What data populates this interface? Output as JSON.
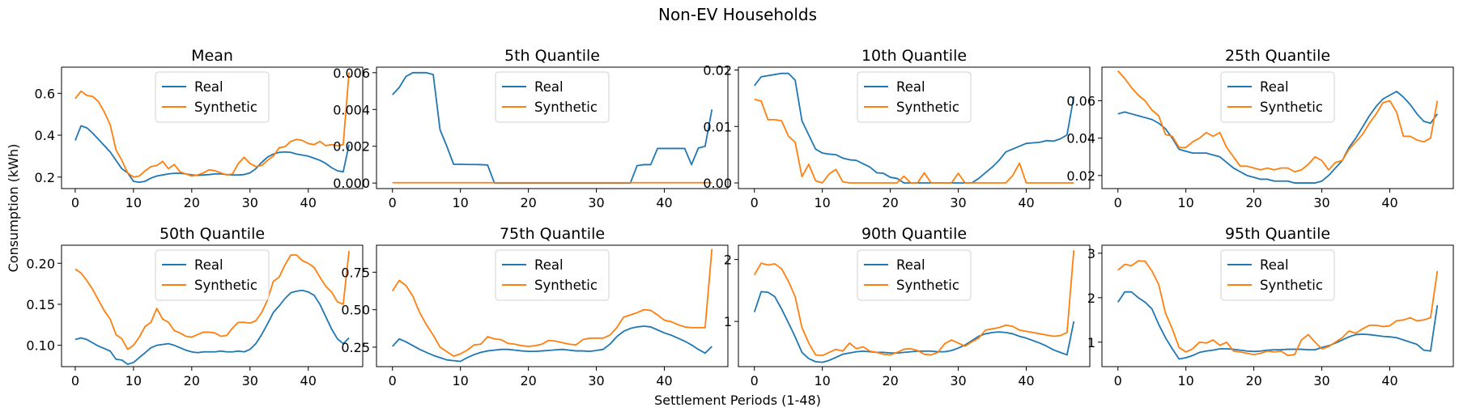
{
  "figure": {
    "title": "Non-EV Households",
    "xlabel": "Settlement Periods (1-48)",
    "ylabel": "Consumption (kWh)",
    "colors": {
      "real": "#1f77b4",
      "synthetic": "#ff7f0e"
    }
  },
  "chart_data": [
    {
      "type": "line",
      "title": "Mean",
      "x_ticks": [
        0,
        10,
        20,
        30,
        40
      ],
      "xlim": [
        -2.35,
        49.35
      ],
      "y_ticks": [
        0.2,
        0.4,
        0.6
      ],
      "y_tick_labels": [
        "0.2",
        "0.4",
        "0.6"
      ],
      "ylim": [
        0.145,
        0.725
      ],
      "legend": "upper center",
      "series": [
        {
          "name": "Real",
          "color": "#1f77b4",
          "values": [
            0.375,
            0.445,
            0.435,
            0.41,
            0.38,
            0.35,
            0.32,
            0.28,
            0.24,
            0.22,
            0.18,
            0.175,
            0.18,
            0.195,
            0.205,
            0.21,
            0.215,
            0.218,
            0.218,
            0.215,
            0.21,
            0.208,
            0.21,
            0.212,
            0.215,
            0.215,
            0.212,
            0.21,
            0.21,
            0.212,
            0.22,
            0.24,
            0.27,
            0.295,
            0.31,
            0.318,
            0.32,
            0.318,
            0.31,
            0.305,
            0.3,
            0.29,
            0.28,
            0.265,
            0.245,
            0.23,
            0.225,
            0.355
          ]
        },
        {
          "name": "Synthetic",
          "color": "#ff7f0e",
          "values": [
            0.575,
            0.61,
            0.59,
            0.585,
            0.56,
            0.51,
            0.45,
            0.33,
            0.28,
            0.22,
            0.2,
            0.205,
            0.23,
            0.25,
            0.255,
            0.275,
            0.24,
            0.26,
            0.225,
            0.215,
            0.205,
            0.21,
            0.22,
            0.235,
            0.23,
            0.22,
            0.21,
            0.215,
            0.265,
            0.295,
            0.265,
            0.25,
            0.255,
            0.28,
            0.3,
            0.34,
            0.345,
            0.37,
            0.38,
            0.375,
            0.36,
            0.355,
            0.37,
            0.35,
            0.355,
            0.35,
            0.355,
            0.7
          ]
        }
      ]
    },
    {
      "type": "line",
      "title": "5th Quantile",
      "x_ticks": [
        0,
        10,
        20,
        30,
        40
      ],
      "xlim": [
        -2.35,
        49.35
      ],
      "y_ticks": [
        0.0,
        0.002,
        0.004,
        0.006
      ],
      "y_tick_labels": [
        "0.000",
        "0.002",
        "0.004",
        "0.006"
      ],
      "ylim": [
        -0.0003,
        0.0063
      ],
      "legend": "upper center",
      "series": [
        {
          "name": "Real",
          "color": "#1f77b4",
          "values": [
            0.0048,
            0.0052,
            0.0058,
            0.006,
            0.006,
            0.006,
            0.0059,
            0.0029,
            0.002,
            0.00102,
            0.00102,
            0.00101,
            0.00101,
            0.001,
            0.00098,
            0.0,
            0,
            0,
            0,
            0,
            0,
            0,
            0,
            0,
            0,
            0,
            0,
            0,
            0,
            0,
            0,
            0,
            0,
            0,
            0,
            0,
            0.00095,
            0.001,
            0.001,
            0.00188,
            0.00188,
            0.00188,
            0.00188,
            0.00188,
            0.001,
            0.0019,
            0.002,
            0.004
          ]
        },
        {
          "name": "Synthetic",
          "color": "#ff7f0e",
          "values": [
            2e-05,
            2e-05,
            2e-05,
            2e-05,
            2e-05,
            2e-05,
            2e-05,
            2e-05,
            2e-05,
            2e-05,
            2e-05,
            2e-05,
            2e-05,
            2e-05,
            2e-05,
            2e-05,
            2e-05,
            2e-05,
            2e-05,
            2e-05,
            2e-05,
            2e-05,
            2e-05,
            2e-05,
            2e-05,
            2e-05,
            2e-05,
            2e-05,
            2e-05,
            2e-05,
            2e-05,
            2e-05,
            2e-05,
            2e-05,
            2e-05,
            2e-05,
            2e-05,
            2e-05,
            2e-05,
            2e-05,
            2e-05,
            2e-05,
            2e-05,
            2e-05,
            2e-05,
            2e-05,
            2e-05,
            2e-05
          ]
        }
      ]
    },
    {
      "type": "line",
      "title": "10th Quantile",
      "x_ticks": [
        0,
        10,
        20,
        30,
        40
      ],
      "xlim": [
        -2.35,
        49.35
      ],
      "y_ticks": [
        0.0,
        0.01,
        0.02
      ],
      "y_tick_labels": [
        "0.00",
        "0.01",
        "0.02"
      ],
      "ylim": [
        -0.001,
        0.0205
      ],
      "legend": "upper center",
      "series": [
        {
          "name": "Real",
          "color": "#1f77b4",
          "values": [
            0.0172,
            0.0188,
            0.019,
            0.0192,
            0.0194,
            0.0194,
            0.0182,
            0.011,
            0.0085,
            0.006,
            0.0053,
            0.0051,
            0.005,
            0.0044,
            0.0041,
            0.004,
            0.0034,
            0.0028,
            0.0018,
            0.0017,
            0.001,
            0.0008,
            0.0,
            0,
            0,
            0,
            0,
            0,
            0,
            0,
            0,
            0,
            0,
            0.0008,
            0.0018,
            0.0028,
            0.004,
            0.0055,
            0.006,
            0.0065,
            0.007,
            0.0071,
            0.0072,
            0.0075,
            0.0074,
            0.0078,
            0.0085,
            0.0153
          ]
        },
        {
          "name": "Synthetic",
          "color": "#ff7f0e",
          "values": [
            0.0148,
            0.0145,
            0.0112,
            0.0112,
            0.011,
            0.0083,
            0.0072,
            0.0011,
            0.0033,
            0.0004,
            0.0,
            0.0016,
            0.0024,
            0.0002,
            0.0,
            0,
            0,
            0,
            0,
            0,
            0,
            0.0,
            0.0012,
            0.0,
            0.0,
            0.0018,
            0.0,
            0.0,
            0.0,
            0.0,
            0.0017,
            0.0,
            0,
            0,
            0,
            0,
            0,
            0,
            0.0013,
            0.0035,
            0.0,
            0,
            0,
            0,
            0,
            0,
            0,
            0
          ]
        }
      ]
    },
    {
      "type": "line",
      "title": "25th Quantile",
      "x_ticks": [
        0,
        10,
        20,
        30,
        40
      ],
      "xlim": [
        -2.35,
        49.35
      ],
      "y_ticks": [
        0.02,
        0.04,
        0.06
      ],
      "y_tick_labels": [
        "0.02",
        "0.04",
        "0.06"
      ],
      "ylim": [
        0.013,
        0.078
      ],
      "legend": "upper center",
      "series": [
        {
          "name": "Real",
          "color": "#1f77b4",
          "values": [
            0.053,
            0.054,
            0.053,
            0.052,
            0.051,
            0.05,
            0.048,
            0.045,
            0.04,
            0.034,
            0.033,
            0.032,
            0.032,
            0.032,
            0.031,
            0.03,
            0.027,
            0.024,
            0.022,
            0.02,
            0.019,
            0.018,
            0.018,
            0.017,
            0.017,
            0.017,
            0.016,
            0.016,
            0.016,
            0.016,
            0.017,
            0.02,
            0.024,
            0.028,
            0.035,
            0.04,
            0.046,
            0.052,
            0.057,
            0.061,
            0.063,
            0.065,
            0.062,
            0.058,
            0.053,
            0.049,
            0.048,
            0.053
          ]
        },
        {
          "name": "Synthetic",
          "color": "#ff7f0e",
          "values": [
            0.076,
            0.072,
            0.067,
            0.063,
            0.06,
            0.055,
            0.052,
            0.042,
            0.041,
            0.035,
            0.035,
            0.038,
            0.04,
            0.043,
            0.041,
            0.043,
            0.035,
            0.03,
            0.025,
            0.025,
            0.024,
            0.023,
            0.024,
            0.023,
            0.024,
            0.024,
            0.022,
            0.023,
            0.026,
            0.03,
            0.028,
            0.023,
            0.027,
            0.028,
            0.034,
            0.038,
            0.042,
            0.048,
            0.053,
            0.059,
            0.06,
            0.054,
            0.041,
            0.041,
            0.039,
            0.038,
            0.04,
            0.06
          ]
        }
      ]
    },
    {
      "type": "line",
      "title": "50th Quantile",
      "x_ticks": [
        0,
        10,
        20,
        30,
        40
      ],
      "xlim": [
        -2.35,
        49.35
      ],
      "y_ticks": [
        0.1,
        0.15,
        0.2
      ],
      "y_tick_labels": [
        "0.10",
        "0.15",
        "0.20"
      ],
      "ylim": [
        0.074,
        0.222
      ],
      "legend": "upper center",
      "series": [
        {
          "name": "Real",
          "color": "#1f77b4",
          "values": [
            0.107,
            0.109,
            0.107,
            0.103,
            0.099,
            0.096,
            0.093,
            0.083,
            0.082,
            0.077,
            0.079,
            0.085,
            0.091,
            0.097,
            0.1,
            0.101,
            0.102,
            0.1,
            0.097,
            0.094,
            0.092,
            0.091,
            0.092,
            0.092,
            0.092,
            0.093,
            0.092,
            0.092,
            0.093,
            0.092,
            0.095,
            0.102,
            0.113,
            0.126,
            0.14,
            0.148,
            0.157,
            0.164,
            0.166,
            0.167,
            0.165,
            0.161,
            0.15,
            0.135,
            0.12,
            0.108,
            0.102,
            0.109
          ]
        },
        {
          "name": "Synthetic",
          "color": "#ff7f0e",
          "values": [
            0.193,
            0.188,
            0.179,
            0.168,
            0.155,
            0.142,
            0.132,
            0.113,
            0.108,
            0.095,
            0.1,
            0.11,
            0.123,
            0.128,
            0.145,
            0.132,
            0.128,
            0.118,
            0.115,
            0.111,
            0.11,
            0.113,
            0.116,
            0.116,
            0.115,
            0.111,
            0.112,
            0.121,
            0.128,
            0.128,
            0.127,
            0.13,
            0.14,
            0.155,
            0.178,
            0.183,
            0.198,
            0.21,
            0.21,
            0.203,
            0.2,
            0.195,
            0.183,
            0.172,
            0.165,
            0.153,
            0.15,
            0.215
          ]
        }
      ]
    },
    {
      "type": "line",
      "title": "75th Quantile",
      "x_ticks": [
        0,
        10,
        20,
        30,
        40
      ],
      "xlim": [
        -2.35,
        49.35
      ],
      "y_ticks": [
        0.25,
        0.5,
        0.75
      ],
      "y_tick_labels": [
        "0.25",
        "0.50",
        "0.75"
      ],
      "ylim": [
        0.12,
        0.93
      ],
      "legend": "upper center",
      "series": [
        {
          "name": "Real",
          "color": "#1f77b4",
          "values": [
            0.255,
            0.305,
            0.285,
            0.26,
            0.235,
            0.215,
            0.195,
            0.18,
            0.165,
            0.16,
            0.155,
            0.18,
            0.2,
            0.215,
            0.225,
            0.23,
            0.235,
            0.235,
            0.23,
            0.225,
            0.222,
            0.222,
            0.225,
            0.228,
            0.232,
            0.235,
            0.23,
            0.225,
            0.225,
            0.222,
            0.228,
            0.235,
            0.27,
            0.32,
            0.355,
            0.375,
            0.385,
            0.39,
            0.385,
            0.365,
            0.345,
            0.33,
            0.31,
            0.29,
            0.265,
            0.235,
            0.21,
            0.255
          ]
        },
        {
          "name": "Synthetic",
          "color": "#ff7f0e",
          "values": [
            0.625,
            0.695,
            0.66,
            0.59,
            0.48,
            0.4,
            0.33,
            0.25,
            0.22,
            0.19,
            0.205,
            0.23,
            0.265,
            0.27,
            0.32,
            0.305,
            0.3,
            0.275,
            0.27,
            0.26,
            0.255,
            0.26,
            0.27,
            0.295,
            0.29,
            0.28,
            0.27,
            0.265,
            0.3,
            0.31,
            0.31,
            0.31,
            0.33,
            0.38,
            0.45,
            0.465,
            0.48,
            0.5,
            0.495,
            0.465,
            0.43,
            0.42,
            0.4,
            0.385,
            0.38,
            0.38,
            0.38,
            0.905
          ]
        }
      ]
    },
    {
      "type": "line",
      "title": "90th Quantile",
      "x_ticks": [
        0,
        10,
        20,
        30,
        40
      ],
      "xlim": [
        -2.35,
        49.35
      ],
      "y_ticks": [
        1,
        2
      ],
      "y_tick_labels": [
        "1",
        "2"
      ],
      "ylim": [
        0.27,
        2.23
      ],
      "legend": "upper center",
      "series": [
        {
          "name": "Real",
          "color": "#1f77b4",
          "values": [
            1.15,
            1.48,
            1.47,
            1.4,
            1.2,
            0.98,
            0.75,
            0.5,
            0.4,
            0.35,
            0.34,
            0.37,
            0.42,
            0.47,
            0.49,
            0.51,
            0.52,
            0.51,
            0.5,
            0.5,
            0.49,
            0.49,
            0.5,
            0.51,
            0.52,
            0.52,
            0.52,
            0.51,
            0.51,
            0.53,
            0.57,
            0.62,
            0.69,
            0.76,
            0.8,
            0.82,
            0.83,
            0.82,
            0.8,
            0.76,
            0.73,
            0.69,
            0.65,
            0.6,
            0.54,
            0.5,
            0.46,
            1.0
          ]
        },
        {
          "name": "Synthetic",
          "color": "#ff7f0e",
          "values": [
            1.75,
            1.94,
            1.91,
            1.93,
            1.85,
            1.65,
            1.4,
            0.9,
            0.65,
            0.46,
            0.45,
            0.5,
            0.55,
            0.52,
            0.65,
            0.56,
            0.59,
            0.52,
            0.5,
            0.47,
            0.46,
            0.5,
            0.55,
            0.56,
            0.53,
            0.47,
            0.46,
            0.5,
            0.64,
            0.7,
            0.65,
            0.6,
            0.67,
            0.73,
            0.86,
            0.88,
            0.9,
            0.94,
            0.92,
            0.86,
            0.84,
            0.82,
            0.8,
            0.78,
            0.76,
            0.77,
            0.82,
            2.15
          ]
        }
      ]
    },
    {
      "type": "line",
      "title": "95th Quantile",
      "x_ticks": [
        0,
        10,
        20,
        30,
        40
      ],
      "xlim": [
        -2.35,
        49.35
      ],
      "y_ticks": [
        1,
        2,
        3
      ],
      "y_tick_labels": [
        "1",
        "2",
        "3"
      ],
      "ylim": [
        0.45,
        3.18
      ],
      "legend": "upper center",
      "series": [
        {
          "name": "Real",
          "color": "#1f77b4",
          "values": [
            1.9,
            2.13,
            2.13,
            2.0,
            1.9,
            1.75,
            1.4,
            1.1,
            0.85,
            0.62,
            0.65,
            0.7,
            0.77,
            0.8,
            0.82,
            0.85,
            0.85,
            0.84,
            0.82,
            0.8,
            0.79,
            0.8,
            0.82,
            0.83,
            0.83,
            0.84,
            0.84,
            0.84,
            0.83,
            0.83,
            0.88,
            0.92,
            0.98,
            1.05,
            1.12,
            1.17,
            1.18,
            1.17,
            1.15,
            1.13,
            1.12,
            1.1,
            1.05,
            1.0,
            0.95,
            0.82,
            0.8,
            1.83
          ]
        },
        {
          "name": "Synthetic",
          "color": "#ff7f0e",
          "values": [
            2.62,
            2.75,
            2.72,
            2.83,
            2.82,
            2.6,
            2.3,
            1.65,
            1.3,
            0.88,
            0.78,
            0.85,
            1.0,
            0.98,
            1.05,
            0.93,
            1.0,
            0.8,
            0.78,
            0.75,
            0.72,
            0.75,
            0.8,
            0.78,
            0.8,
            0.7,
            0.72,
            1.05,
            1.17,
            1.0,
            0.85,
            0.9,
            1.0,
            1.1,
            1.25,
            1.2,
            1.3,
            1.38,
            1.38,
            1.35,
            1.37,
            1.48,
            1.5,
            1.55,
            1.48,
            1.5,
            1.55,
            2.6
          ]
        }
      ]
    }
  ]
}
